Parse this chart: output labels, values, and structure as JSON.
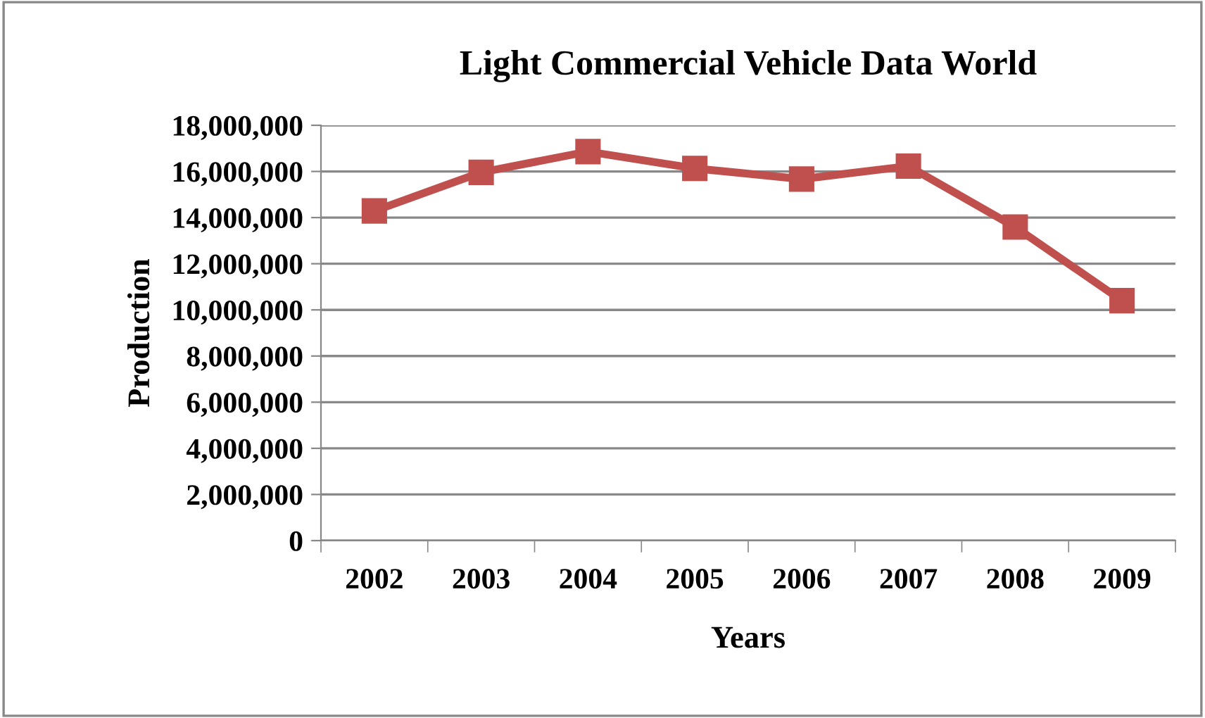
{
  "chart_data": {
    "type": "line",
    "title": "Light Commercial Vehicle Data World",
    "xlabel": "Years",
    "ylabel": "Production",
    "categories": [
      "2002",
      "2003",
      "2004",
      "2005",
      "2006",
      "2007",
      "2008",
      "2009"
    ],
    "series": [
      {
        "color": "#c0504d",
        "values": [
          14290000,
          15960000,
          16860000,
          16130000,
          15670000,
          16230000,
          13590000,
          10400000
        ]
      }
    ],
    "ylim": [
      0,
      18000000
    ],
    "yticks": [
      {
        "value": 0,
        "label": "0"
      },
      {
        "value": 2000000,
        "label": "2,000,000"
      },
      {
        "value": 4000000,
        "label": "4,000,000"
      },
      {
        "value": 6000000,
        "label": "6,000,000"
      },
      {
        "value": 8000000,
        "label": "8,000,000"
      },
      {
        "value": 10000000,
        "label": "10,000,000"
      },
      {
        "value": 12000000,
        "label": "12,000,000"
      },
      {
        "value": 14000000,
        "label": "14,000,000"
      },
      {
        "value": 16000000,
        "label": "16,000,000"
      },
      {
        "value": 18000000,
        "label": "18,000,000"
      }
    ],
    "grid": "y",
    "marker": "square",
    "line_style": "solid"
  }
}
